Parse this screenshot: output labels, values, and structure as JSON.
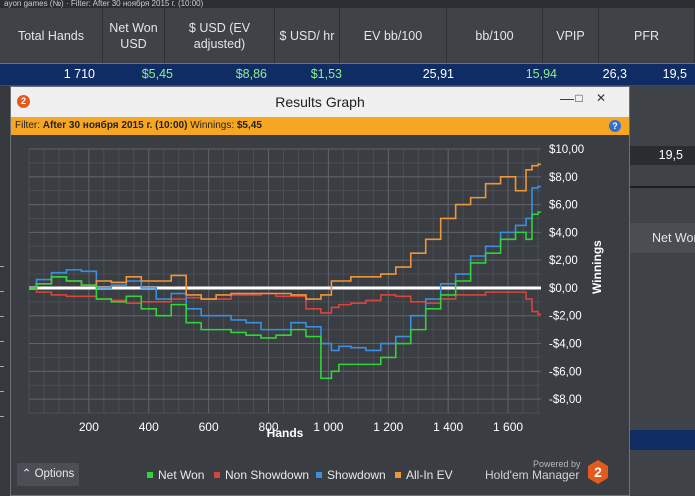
{
  "background_window": {
    "title_fragment": "ayon games (№) · Filter: After 30 ноября 2015 г. (10:00)",
    "columns": [
      "Total Hands",
      "Net Won USD",
      "$ USD (EV adjusted)",
      "$ USD/ hr",
      "EV bb/100",
      "bb/100",
      "VPIP",
      "PFR"
    ],
    "row": {
      "total_hands": "1 710",
      "net_won_usd": "$5,45",
      "usd_ev_adjusted": "$8,86",
      "usd_hr": "$1,53",
      "ev_bb100": "25,91",
      "bb100": "15,94",
      "vpip": "26,3",
      "pfr": "19,5"
    },
    "right_pfr_value": "19,5",
    "right_netwon_label": "Net Won"
  },
  "dialog": {
    "title": "Results Graph",
    "filter_label": "Filter:",
    "filter_value": "After 30 ноября 2015 г. (10:00)",
    "winnings_label": "Winnings:",
    "winnings_value": "$5,45",
    "help_glyph": "?",
    "minimize_glyph": "—",
    "maximize_glyph": "□",
    "close_glyph": "✕",
    "options_label": "Options",
    "options_arrow": "⌃",
    "powered_by": "Powered by",
    "brand": "Hold'em Manager",
    "brand_mark": "2",
    "logo_mark": "2"
  },
  "colors": {
    "net_won": "#2fd43a",
    "non_showdown": "#d9453a",
    "showdown": "#3b8fe0",
    "allin_ev": "#f0963a",
    "accent": "#f5a623"
  },
  "chart_data": {
    "type": "line",
    "xlabel": "Hands",
    "ylabel": "Winnings",
    "xlim": [
      0,
      1710
    ],
    "ylim": [
      -9,
      10
    ],
    "xticks": [
      200,
      400,
      600,
      800,
      1000,
      1200,
      1400,
      1600
    ],
    "xtick_labels": [
      "200",
      "400",
      "600",
      "800",
      "1 000",
      "1 200",
      "1 400",
      "1 600"
    ],
    "yticks": [
      10,
      8,
      6,
      4,
      2,
      0,
      -2,
      -4,
      -6,
      -8
    ],
    "ytick_labels": [
      "$10,00",
      "$8,00",
      "$6,00",
      "$4,00",
      "$2,00",
      "$0,00",
      "-$2,00",
      "-$4,00",
      "-$6,00",
      "-$8,00"
    ],
    "grid": true,
    "legend_position": "bottom",
    "x": [
      0,
      50,
      100,
      150,
      200,
      250,
      300,
      350,
      400,
      450,
      500,
      550,
      600,
      650,
      700,
      750,
      800,
      850,
      900,
      950,
      1000,
      1020,
      1050,
      1100,
      1150,
      1200,
      1250,
      1300,
      1350,
      1400,
      1450,
      1500,
      1550,
      1600,
      1650,
      1670,
      1690,
      1710
    ],
    "series": [
      {
        "name": "Net Won",
        "color": "#2fd43a",
        "values": [
          0,
          0.3,
          0.8,
          0.5,
          0.2,
          -0.8,
          -1.0,
          -0.6,
          -1.5,
          -2.0,
          -1.2,
          -2.5,
          -3.0,
          -3.0,
          -3.2,
          -3.4,
          -3.6,
          -3.4,
          -3.0,
          -3.5,
          -6.5,
          -6.0,
          -5.5,
          -5.5,
          -5.5,
          -5.0,
          -4.0,
          -3.0,
          -1.5,
          -0.5,
          0.5,
          1.8,
          2.5,
          3.5,
          4.0,
          3.5,
          5.3,
          5.45
        ]
      },
      {
        "name": "Non Showdown",
        "color": "#d9453a",
        "values": [
          0,
          -0.3,
          -0.5,
          -0.6,
          -0.6,
          -0.8,
          -0.9,
          -1.1,
          -1.0,
          -1.0,
          -0.8,
          -0.7,
          -0.8,
          -0.8,
          -0.5,
          -0.5,
          -0.4,
          -0.6,
          -0.6,
          -1.5,
          -1.8,
          -1.4,
          -1.2,
          -1.1,
          -0.9,
          -0.5,
          -0.6,
          -1.0,
          -1.1,
          -0.8,
          -0.5,
          -0.5,
          -0.3,
          -0.3,
          -0.3,
          -0.8,
          -1.7,
          -1.9
        ]
      },
      {
        "name": "Showdown",
        "color": "#3b8fe0",
        "values": [
          0,
          0.6,
          1.1,
          1.3,
          1.2,
          0.0,
          0.2,
          0.5,
          0.0,
          -0.8,
          -0.4,
          -1.5,
          -2.0,
          -2.0,
          -2.3,
          -2.5,
          -3.0,
          -3.0,
          -2.5,
          -2.8,
          -4.0,
          -4.5,
          -4.2,
          -4.3,
          -4.5,
          -4.0,
          -3.5,
          -2.0,
          -0.8,
          0.3,
          1.0,
          2.3,
          3.0,
          4.0,
          4.5,
          5.0,
          7.2,
          7.3
        ]
      },
      {
        "name": "All-In EV",
        "color": "#f0963a",
        "values": [
          0,
          0.3,
          0.8,
          0.5,
          0.2,
          0.5,
          0.4,
          0.8,
          0.5,
          0.5,
          0.9,
          -0.5,
          -0.8,
          -0.5,
          -0.4,
          -0.4,
          -0.4,
          -0.4,
          -0.5,
          -0.8,
          -0.5,
          0.5,
          0.5,
          0.8,
          0.8,
          1.0,
          1.5,
          2.5,
          3.5,
          5.0,
          6.0,
          6.5,
          7.5,
          8.0,
          7.0,
          8.5,
          8.8,
          8.9
        ]
      }
    ]
  }
}
